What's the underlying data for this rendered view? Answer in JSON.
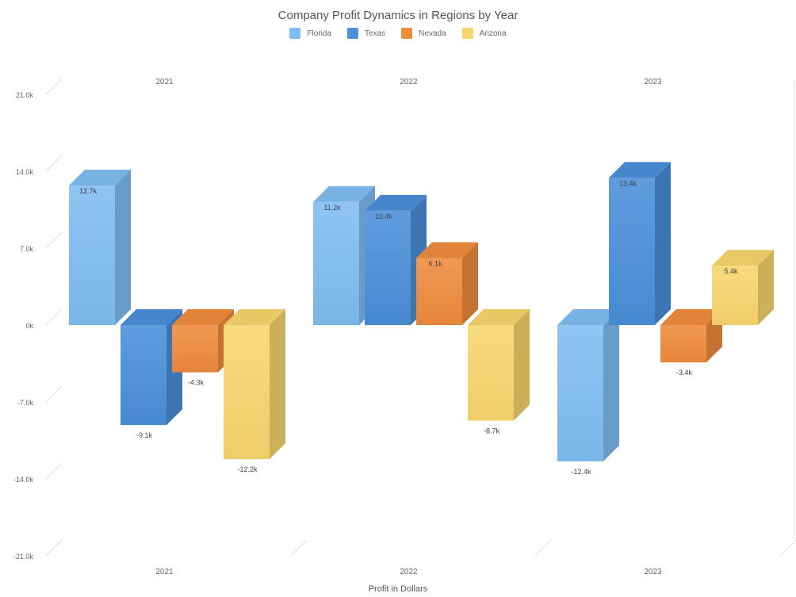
{
  "chart_data": {
    "type": "bar",
    "title": "Company Profit Dynamics in Regions by Year",
    "xlabel": "Profit in Dollars",
    "ylabel": "",
    "ylim": [
      -21,
      21
    ],
    "yticks": [
      21,
      14,
      7,
      0,
      -7,
      -14,
      -21
    ],
    "ytick_labels": [
      "21.0k",
      "14.0k",
      "7.0k",
      "0k",
      "-7.0k",
      "-14.0k",
      "-21.0k"
    ],
    "legend_position": "top",
    "grid": false,
    "series": [
      {
        "name": "Florida",
        "color": "#7fbdf2"
      },
      {
        "name": "Texas",
        "color": "#4a8fd9"
      },
      {
        "name": "Nevada",
        "color": "#ef8b3c"
      },
      {
        "name": "Arizona",
        "color": "#f8d66d"
      }
    ],
    "panels": [
      {
        "year": "2021",
        "values": [
          12.7,
          -9.1,
          -4.3,
          -12.2
        ],
        "labels": [
          "12.7k",
          "-9.1k",
          "-4.3k",
          "-12.2k"
        ]
      },
      {
        "year": "2022",
        "values": [
          11.2,
          10.4,
          6.1,
          -8.7
        ],
        "labels": [
          "11.2k",
          "10.4k",
          "6.1k",
          "-8.7k"
        ]
      },
      {
        "year": "2023",
        "values": [
          -12.4,
          13.4,
          -3.4,
          5.4
        ],
        "labels": [
          "-12.4k",
          "13.4k",
          "-3.4k",
          "5.4k"
        ]
      }
    ]
  }
}
